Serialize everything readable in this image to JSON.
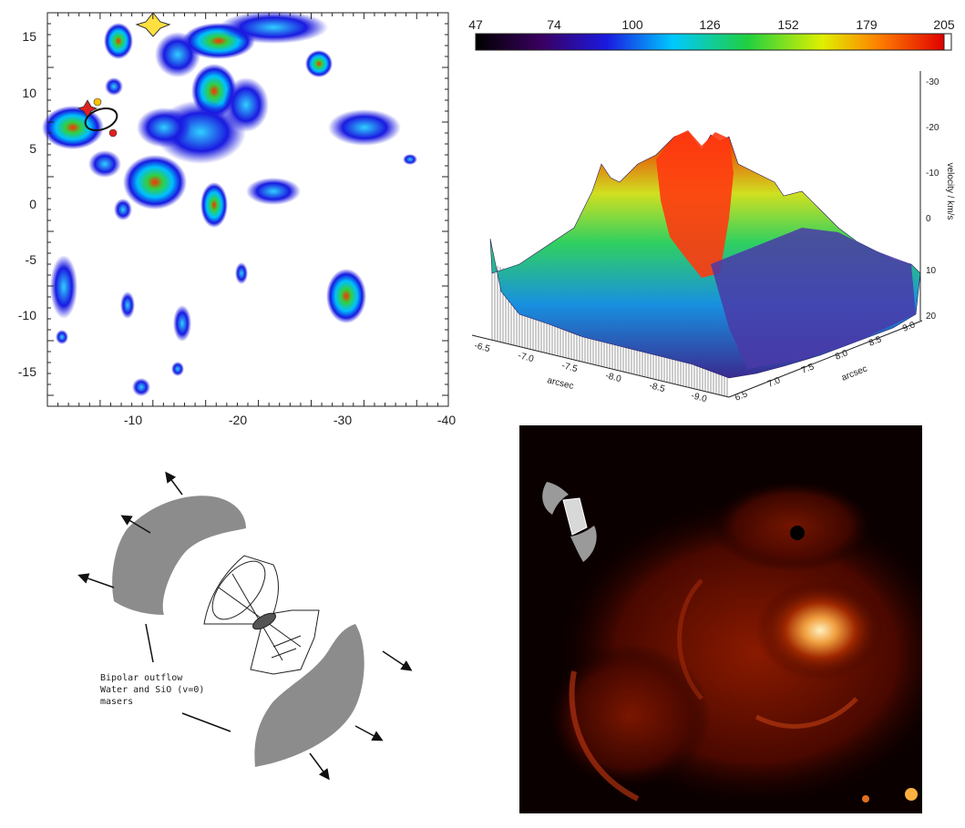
{
  "map_panel": {
    "x_ticks": [
      "-10",
      "-20",
      "-30",
      "-40"
    ],
    "y_ticks": [
      "15",
      "10",
      "5",
      "0",
      "-5",
      "-10",
      "-15"
    ],
    "colors": {
      "low": "#1010d0",
      "mid": "#00c8ff",
      "green": "#20d040",
      "high": "#ff2000",
      "star": "#ffe040"
    }
  },
  "colorbar": {
    "ticks": [
      "47",
      "74",
      "100",
      "126",
      "152",
      "179",
      "205"
    ]
  },
  "surface_panel": {
    "z_ticks": [
      "-30",
      "-20",
      "-10",
      "0",
      "10",
      "20"
    ],
    "z_axis_label": "velocity / km/s",
    "x_ticks": [
      "-6.5",
      "-7.0",
      "-7.5",
      "-8.0",
      "-8.5",
      "-9.0"
    ],
    "x_axis_label": "arcsec",
    "y_ticks": [
      "9.0",
      "8.5",
      "8.0",
      "7.5",
      "7.0",
      "6.5"
    ],
    "y_axis_label": "arcsec"
  },
  "diagram_panel": {
    "annotation_lines": [
      "Bipolar outflow",
      "Water and SiO (v=0)",
      "masers"
    ],
    "lobe_color": "#8c8c8c"
  },
  "heatmap_panel": {
    "colors": {
      "dark": "#200000",
      "mid": "#8a1a00",
      "bright": "#ffd070"
    }
  }
}
